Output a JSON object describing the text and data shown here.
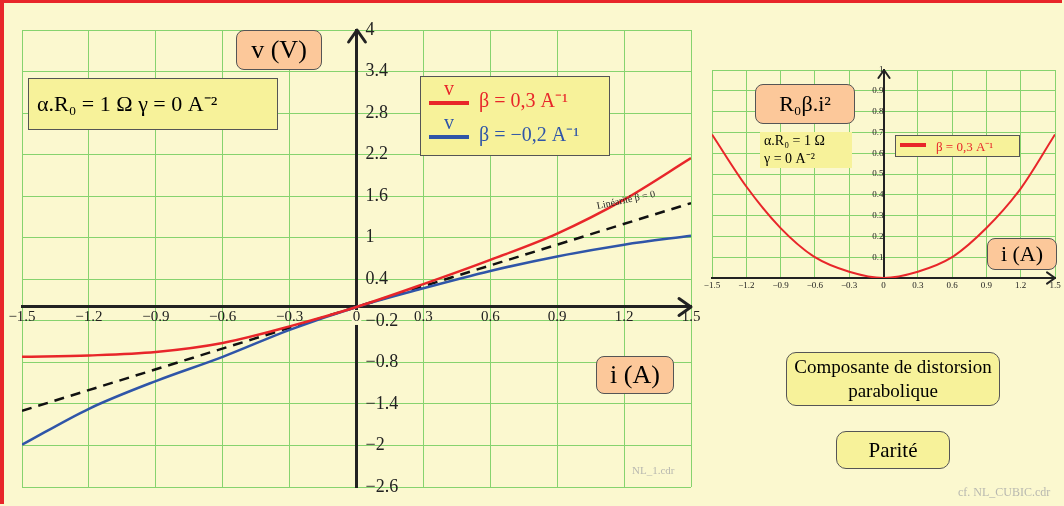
{
  "chart_data": [
    {
      "type": "line",
      "xlabel": "i (A)",
      "ylabel": "v (V)",
      "legend_title": "v",
      "legend": "top right",
      "grid": true,
      "marker": "none",
      "xlim": [
        -1.5,
        1.5
      ],
      "ylim": [
        -2.6,
        4
      ],
      "xticks": [
        -1.5,
        -1.2,
        -0.9,
        -0.6,
        -0.3,
        0,
        0.3,
        0.6,
        0.9,
        1.2,
        1.5
      ],
      "yticks": [
        4,
        3.4,
        2.8,
        2.2,
        1.6,
        1,
        0.4,
        -0.2,
        -0.8,
        -1.4,
        -2,
        -2.6
      ],
      "x": [
        -1.5,
        -1.2,
        -0.9,
        -0.6,
        -0.3,
        0,
        0.3,
        0.6,
        0.9,
        1.2,
        1.5
      ],
      "series": [
        {
          "name": "β = 0,3  A⁻¹",
          "color": "#e8262a",
          "values": [
            -0.72,
            -0.7,
            -0.65,
            -0.52,
            -0.28,
            0,
            0.33,
            0.68,
            1.06,
            1.55,
            2.15
          ]
        },
        {
          "name": "β = −0,2  A⁻¹",
          "color": "#2f55a8",
          "values": [
            -1.99,
            -1.47,
            -1.07,
            -0.72,
            -0.33,
            0,
            0.27,
            0.52,
            0.73,
            0.9,
            1.03
          ]
        },
        {
          "color": "#111111",
          "line_style": "dashed",
          "x": [
            -1.5,
            1.5
          ],
          "values": [
            -1.5,
            1.5
          ]
        }
      ],
      "annotations": [
        "α.R₀ = 1 Ω    γ = 0  A⁻²",
        "Linéarité β = 0",
        "NL_1.cdr"
      ]
    },
    {
      "type": "line",
      "xlabel": "i (A)",
      "ylabel": "R₀β.i²",
      "legend": "top right",
      "grid": true,
      "marker": "none",
      "xlim": [
        -1.5,
        1.5
      ],
      "ylim": [
        0,
        1
      ],
      "xticks": [
        -1.5,
        -1.2,
        -0.9,
        -0.6,
        -0.3,
        0,
        0.3,
        0.6,
        0.9,
        1.2,
        1.5
      ],
      "yticks": [
        0.1,
        0.2,
        0.3,
        0.4,
        0.5,
        0.6,
        0.7,
        0.8,
        0.9,
        1
      ],
      "x": [
        -1.5,
        -1.2,
        -0.9,
        -0.6,
        -0.3,
        0,
        0.3,
        0.6,
        0.9,
        1.2,
        1.5
      ],
      "series": [
        {
          "name": "β = 0,3 A⁻¹",
          "color": "#e8262a",
          "values": [
            0.69,
            0.44,
            0.24,
            0.1,
            0.03,
            0,
            0.03,
            0.1,
            0.24,
            0.43,
            0.69
          ]
        }
      ],
      "annotations": [
        "α.R₀ = 1 Ω",
        "γ = 0  A⁻²"
      ]
    },
    {
      "type": "other",
      "annotations": [
        "Composante de distorsion parabolique",
        "Parité",
        "cf. NL_CUBIC.cdr"
      ]
    }
  ]
}
